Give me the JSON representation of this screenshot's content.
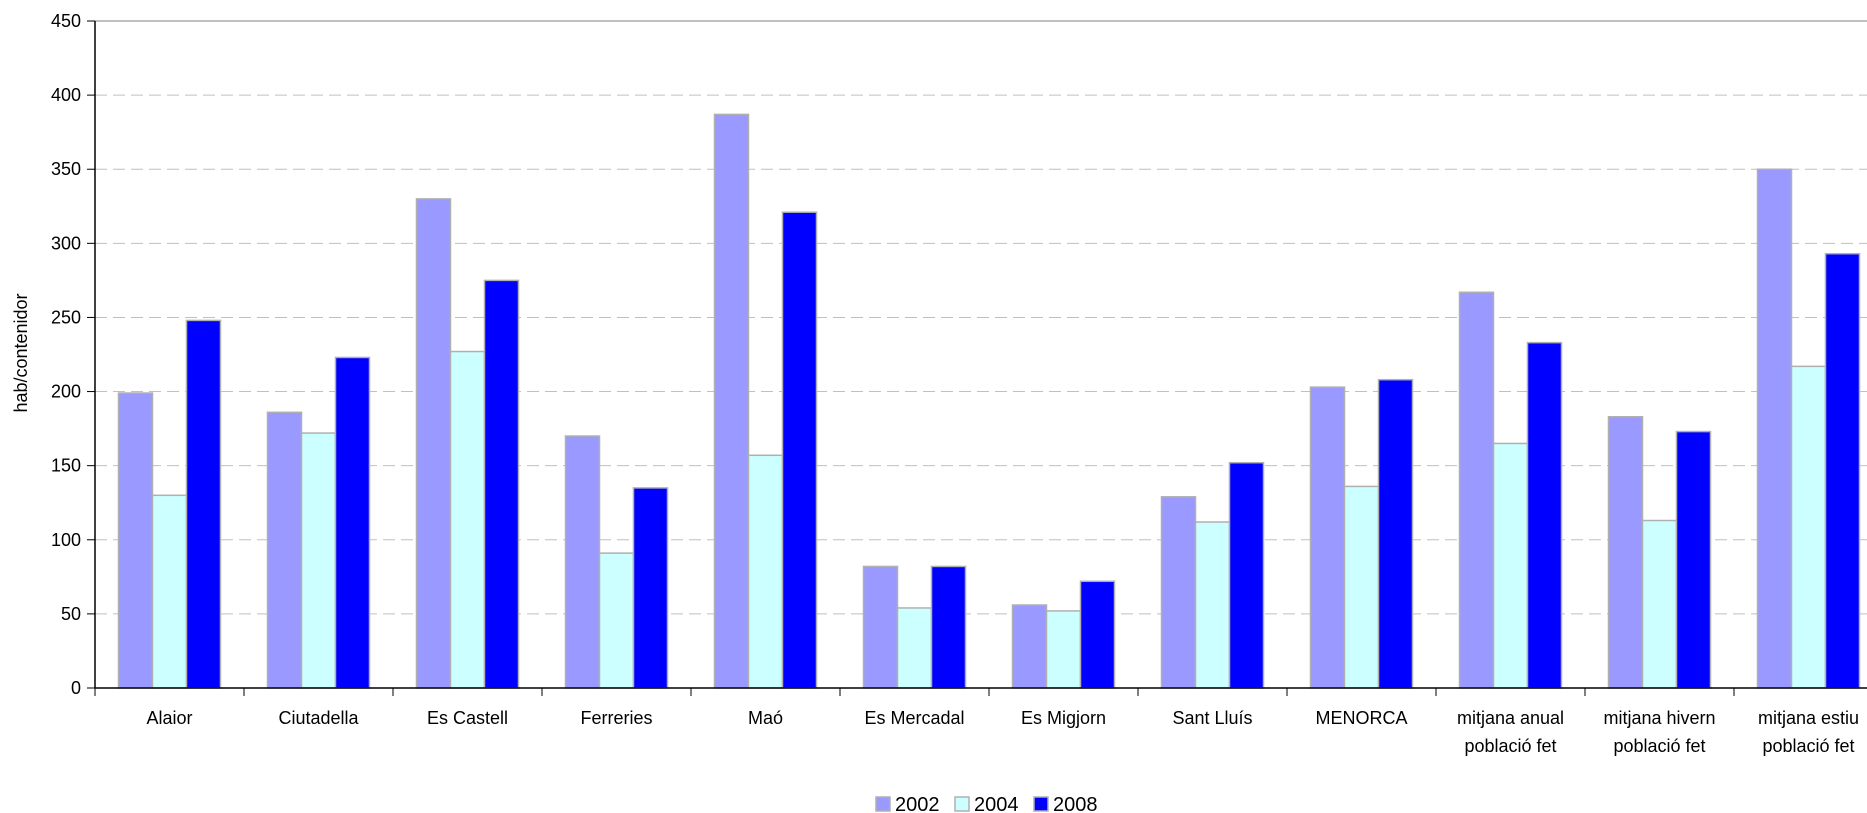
{
  "chart_data": {
    "type": "bar",
    "ylabel": "hab/contenidor",
    "ylim": [
      0,
      450
    ],
    "yticks": [
      0,
      50,
      100,
      150,
      200,
      250,
      300,
      350,
      400,
      450
    ],
    "grid": true,
    "legend_position": "bottom",
    "categories": [
      [
        "Alaior"
      ],
      [
        "Ciutadella"
      ],
      [
        "Es Castell"
      ],
      [
        "Ferreries"
      ],
      [
        "Maó"
      ],
      [
        "Es Mercadal"
      ],
      [
        "Es Migjorn"
      ],
      [
        "Sant Lluís"
      ],
      [
        "MENORCA"
      ],
      [
        "mitjana anual",
        "població fet"
      ],
      [
        "mitjana hivern",
        "població fet"
      ],
      [
        "mitjana estiu",
        "població fet"
      ]
    ],
    "series": [
      {
        "name": "2002",
        "color": "#9999ff",
        "values": [
          199,
          186,
          330,
          170,
          387,
          82,
          56,
          129,
          203,
          267,
          183,
          350
        ]
      },
      {
        "name": "2004",
        "color": "#ccffff",
        "values": [
          130,
          172,
          227,
          91,
          157,
          54,
          52,
          112,
          136,
          165,
          113,
          217
        ]
      },
      {
        "name": "2008",
        "color": "#0000ff",
        "values": [
          248,
          223,
          275,
          135,
          321,
          82,
          72,
          152,
          208,
          233,
          173,
          293
        ]
      }
    ]
  }
}
